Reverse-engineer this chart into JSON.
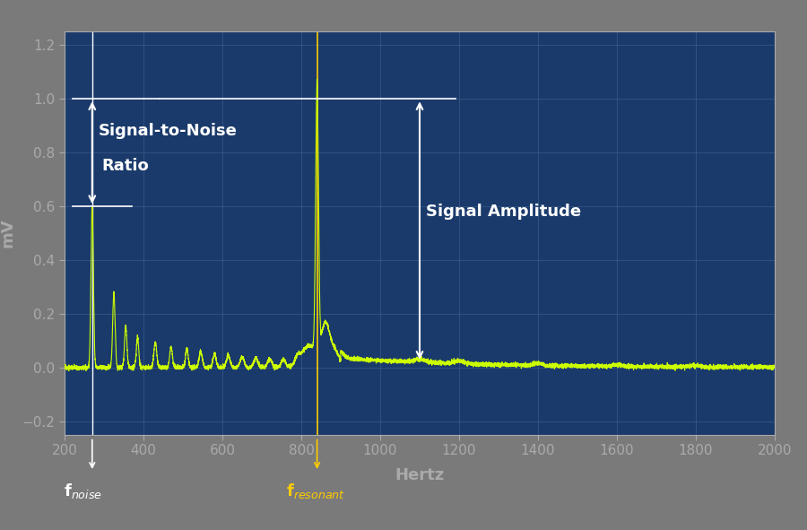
{
  "background_color": "#7a7a7a",
  "plot_bg_color": "#1a3a6b",
  "grid_color": "#3a5a8b",
  "line_color": "#ccff00",
  "xlabel": "Hertz",
  "ylabel": "mV",
  "xlim": [
    200,
    2000
  ],
  "ylim": [
    -0.25,
    1.25
  ],
  "xticks": [
    200,
    400,
    600,
    800,
    1000,
    1200,
    1400,
    1600,
    1800,
    2000
  ],
  "yticks": [
    -0.2,
    0.0,
    0.2,
    0.4,
    0.6,
    0.8,
    1.0,
    1.2
  ],
  "noise_freq": 270,
  "resonant_freq": 840,
  "noise_peak_amp": 0.6,
  "resonant_peak_amp": 1.0,
  "axis_color": "#aaaaaa",
  "tick_color": "#aaaaaa",
  "white": "#ffffff",
  "fnoise_color": "#ffffff",
  "fresonant_color": "#ffcc00",
  "vline_noise_color": "#ffffff",
  "vline_resonant_color": "#ffcc00"
}
